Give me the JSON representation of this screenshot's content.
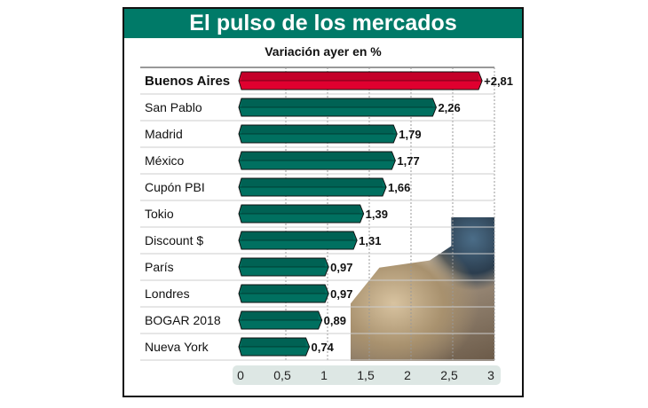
{
  "chart_data": {
    "type": "bar",
    "orientation": "horizontal",
    "title": "El pulso de los mercados",
    "subtitle": "Variación ayer en %",
    "categories": [
      "Buenos Aires",
      "San Pablo",
      "Madrid",
      "México",
      "Cupón PBI",
      "Tokio",
      "Discount $",
      "París",
      "Londres",
      "BOGAR 2018",
      "Nueva York"
    ],
    "values": [
      2.81,
      2.26,
      1.79,
      1.77,
      1.66,
      1.39,
      1.31,
      0.97,
      0.97,
      0.89,
      0.74
    ],
    "value_labels": [
      "+2,81",
      "2,26",
      "1,79",
      "1,77",
      "1,66",
      "1,39",
      "1,31",
      "0,97",
      "0,97",
      "0,89",
      "0,74"
    ],
    "highlight": "Buenos Aires",
    "xlim": [
      0,
      3
    ],
    "xticks": [
      "0",
      "0,5",
      "1",
      "1,5",
      "2",
      "2,5",
      "3"
    ],
    "grid": true,
    "colors": {
      "highlight": "#e0002f",
      "bar": "#007060",
      "header": "#007a68"
    }
  }
}
